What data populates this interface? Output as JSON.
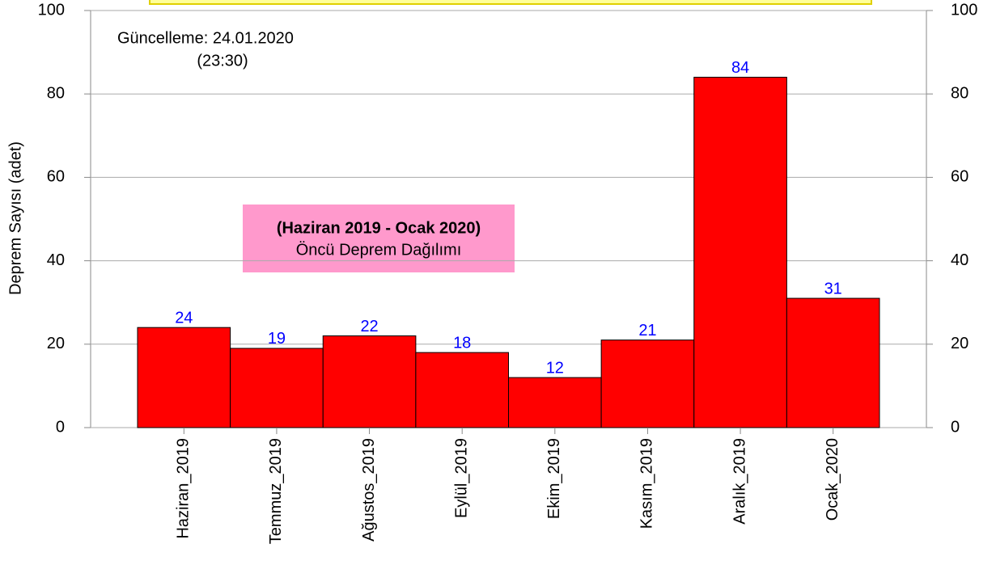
{
  "chart_data": {
    "type": "bar",
    "y_label": "Deprem Sayısı (adet)",
    "annotations": [
      "Güncelleme: 24.01.2020",
      "(23:30)",
      "(Haziran 2019 - Ocak 2020)",
      "Öncü Deprem Dağılımı"
    ],
    "categories": [
      "Haziran_2019",
      "Temmuz_2019",
      "Ağustos_2019",
      "Eylül_2019",
      "Ekim_2019",
      "Kasım_2019",
      "Aralık_2019",
      "Ocak_2020"
    ],
    "values": [
      24,
      19,
      22,
      18,
      12,
      21,
      84,
      31
    ],
    "color": "#ff0000",
    "label_color": "#0000ff",
    "ylim": [
      0,
      100
    ],
    "yticks": [
      0,
      20,
      40,
      60,
      80,
      100
    ],
    "y2lim": [
      0,
      100
    ],
    "y2ticks": [
      0,
      20,
      40,
      60,
      80,
      100
    ],
    "grid": true
  }
}
